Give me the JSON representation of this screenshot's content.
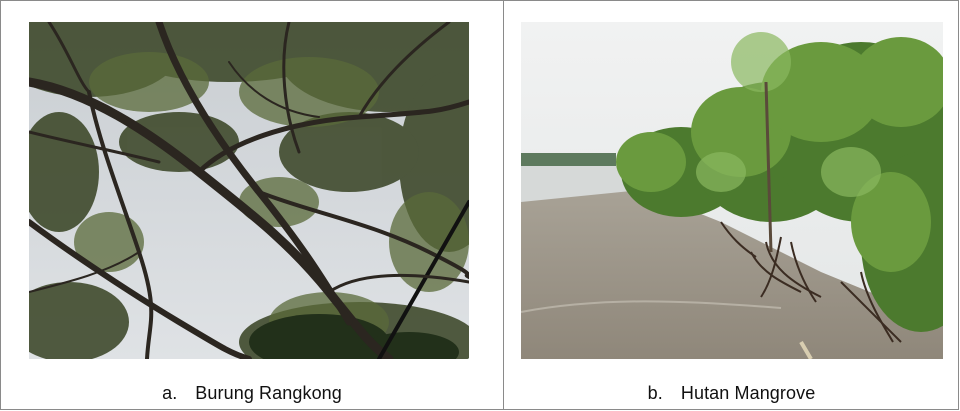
{
  "figures": [
    {
      "letter": "a.",
      "caption": "Burung Rangkong",
      "photo_subject": "tree-canopy-photo"
    },
    {
      "letter": "b.",
      "caption": "Hutan Mangrove",
      "photo_subject": "mangrove-shore-photo"
    }
  ],
  "colors": {
    "border": "#8a8a8a",
    "caption_text": "#111111"
  }
}
